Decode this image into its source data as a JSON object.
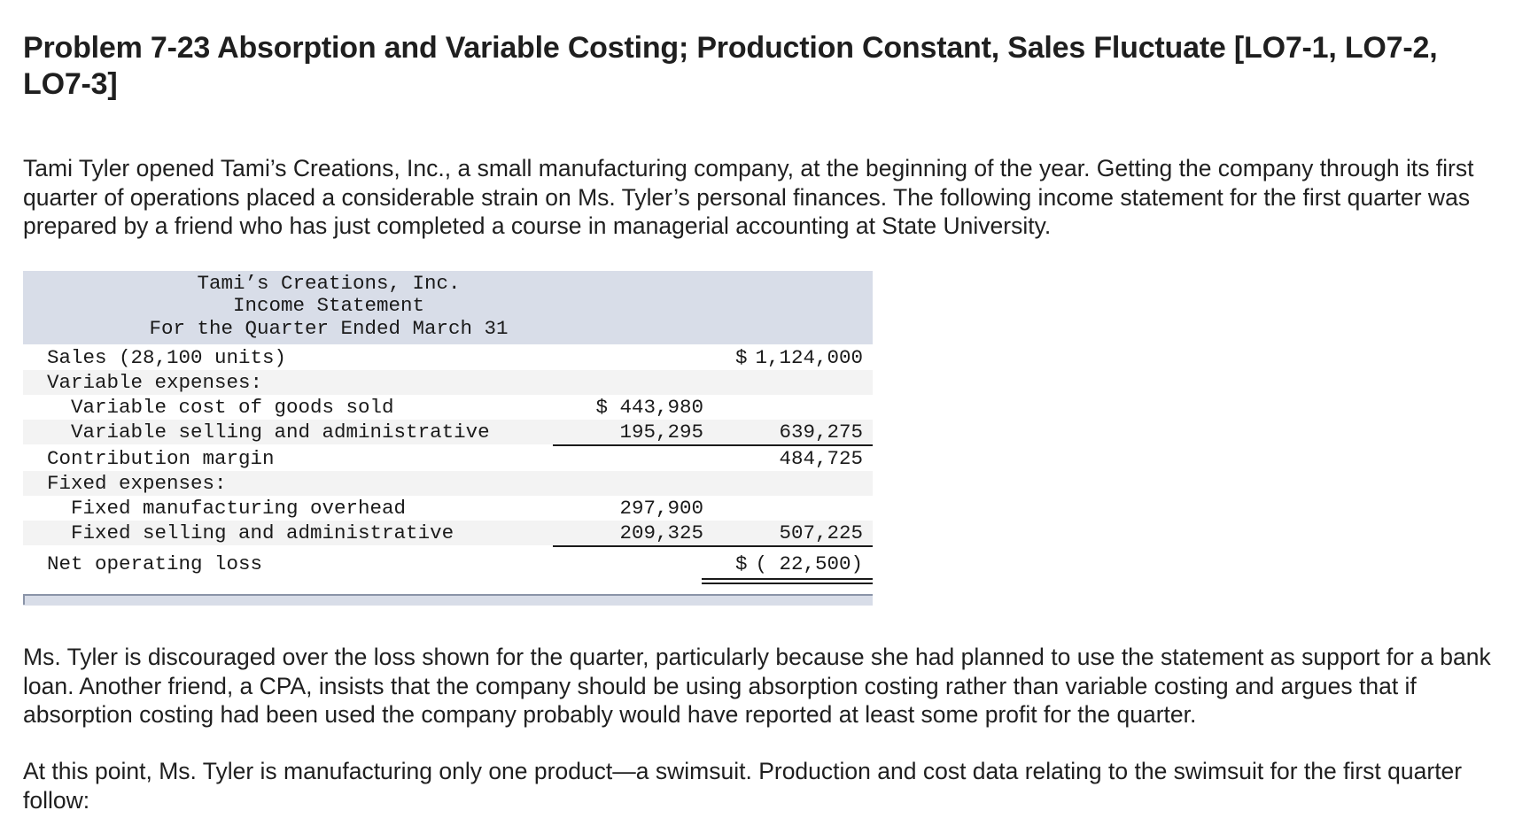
{
  "title": "Problem 7-23 Absorption and Variable Costing; Production Constant, Sales Fluctuate [LO7-1, LO7-2, LO7-3]",
  "intro": "Tami Tyler opened Tami’s Creations, Inc., a small manufacturing company, at the beginning of the year. Getting the company through its first quarter of operations placed a considerable strain on Ms. Tyler’s personal finances. The following income statement for the first quarter was prepared by a friend who has just completed a course in managerial accounting at State University.",
  "statement": {
    "company": "Tami’s Creations, Inc.",
    "name": "Income Statement",
    "period": "For the Quarter Ended March 31",
    "rows": {
      "sales": {
        "label": "Sales (28,100 units)",
        "col2_sign": "$",
        "col2": "1,124,000"
      },
      "var_exp": {
        "label": "Variable expenses:"
      },
      "var_cogs": {
        "label": "Variable cost of goods sold",
        "col1": "$ 443,980"
      },
      "var_sga": {
        "label": "Variable selling and administrative",
        "col1": "195,295",
        "col2": "639,275"
      },
      "cm": {
        "label": "Contribution margin",
        "col2": "484,725"
      },
      "fixed_exp": {
        "label": "Fixed expenses:"
      },
      "fixed_moh": {
        "label": "Fixed manufacturing overhead",
        "col1": "297,900"
      },
      "fixed_sga": {
        "label": "Fixed selling and administrative",
        "col1": "209,325",
        "col2": "507,225"
      },
      "net": {
        "label": "Net operating loss",
        "col2_sign": "$",
        "col2": "( 22,500)"
      }
    }
  },
  "para2": "Ms. Tyler is discouraged over the loss shown for the quarter, particularly because she had planned to use the statement as support for a bank loan. Another friend, a CPA, insists that the company should be using absorption costing rather than variable costing and argues that if absorption costing had been used the company probably would have reported at least some profit for the quarter.",
  "para3": "At this point, Ms. Tyler is manufacturing only one product—a swimsuit. Production and cost data relating to the swimsuit for the first quarter follow:"
}
